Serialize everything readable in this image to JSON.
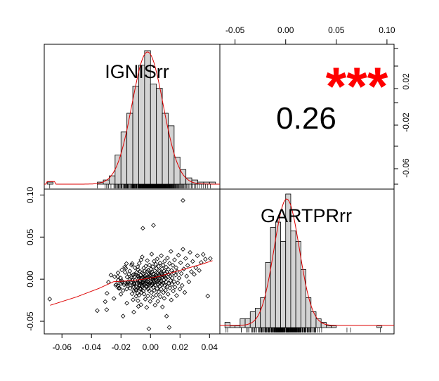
{
  "chart_data": {
    "type": "scatter",
    "variables": [
      "IGNISrr",
      "GARTPRrr"
    ],
    "correlation": {
      "value": "0.26",
      "significance": "***",
      "significance_color": "#ff0000"
    },
    "axes": {
      "x_var1": {
        "ticks": [
          -0.06,
          -0.04,
          -0.02,
          0.0,
          0.02,
          0.04
        ],
        "tick_labels": [
          "-0.06",
          "-0.04",
          "-0.02",
          "0.00",
          "0.02",
          "0.04"
        ],
        "range": [
          -0.072,
          0.047
        ]
      },
      "y_var2": {
        "ticks": [
          -0.05,
          0.0,
          0.05,
          0.1
        ],
        "tick_labels": [
          "-0.05",
          "0.00",
          "0.05",
          "0.10"
        ],
        "range": [
          -0.065,
          0.107
        ]
      },
      "x_var2": {
        "ticks": [
          -0.05,
          0.0,
          0.05,
          0.1
        ],
        "tick_labels": [
          "-0.05",
          "0.00",
          "0.05",
          "0.10"
        ],
        "range": [
          -0.065,
          0.107
        ]
      },
      "y_var1": {
        "ticks": [
          0.02,
          -0.02,
          -0.06
        ],
        "tick_labels": [
          "0.02",
          "-0.02",
          "-0.06"
        ]
      }
    },
    "histograms": {
      "IGNISrr": {
        "bins": [
          -0.07,
          -0.066,
          -0.036,
          -0.032,
          -0.028,
          -0.024,
          -0.02,
          -0.016,
          -0.012,
          -0.008,
          -0.004,
          0.0,
          0.004,
          0.008,
          0.012,
          0.016,
          0.02,
          0.024,
          0.028,
          0.032,
          0.036,
          0.04,
          0.044
        ],
        "counts": [
          1,
          0,
          1,
          2,
          4,
          14,
          25,
          34,
          47,
          57,
          64,
          48,
          46,
          34,
          28,
          13,
          7,
          3,
          2,
          1,
          1,
          1
        ],
        "max_count": 64
      },
      "GARTPRrr": {
        "bins": [
          -0.06,
          -0.055,
          -0.05,
          -0.045,
          -0.04,
          -0.035,
          -0.03,
          -0.025,
          -0.02,
          -0.015,
          -0.01,
          -0.005,
          0.0,
          0.005,
          0.01,
          0.015,
          0.02,
          0.025,
          0.03,
          0.035,
          0.04,
          0.045,
          0.05,
          0.09,
          0.095
        ],
        "counts": [
          3,
          1,
          1,
          5,
          5,
          9,
          11,
          17,
          37,
          57,
          60,
          49,
          76,
          55,
          49,
          33,
          17,
          9,
          5,
          3,
          1,
          1,
          0,
          1
        ],
        "max_count": 76
      }
    },
    "loess": [
      {
        "x": -0.068,
        "y": -0.031
      },
      {
        "x": -0.05,
        "y": -0.021
      },
      {
        "x": -0.035,
        "y": -0.011
      },
      {
        "x": -0.025,
        "y": -0.003
      },
      {
        "x": -0.015,
        "y": -0.002
      },
      {
        "x": -0.005,
        "y": 0.0
      },
      {
        "x": 0.005,
        "y": 0.003
      },
      {
        "x": 0.015,
        "y": 0.008
      },
      {
        "x": 0.025,
        "y": 0.013
      },
      {
        "x": 0.035,
        "y": 0.018
      },
      {
        "x": 0.042,
        "y": 0.022
      }
    ],
    "points": [
      {
        "x": -0.0683,
        "y": -0.0236
      },
      {
        "x": -0.0361,
        "y": -0.0373
      },
      {
        "x": -0.0307,
        "y": -0.0267
      },
      {
        "x": -0.0297,
        "y": -0.0363
      },
      {
        "x": -0.0295,
        "y": -0.0168
      },
      {
        "x": -0.0285,
        "y": -0.0035
      },
      {
        "x": -0.0268,
        "y": 0.0049
      },
      {
        "x": -0.0248,
        "y": -0.0229
      },
      {
        "x": -0.0243,
        "y": 0.0029
      },
      {
        "x": -0.0236,
        "y": -0.0071
      },
      {
        "x": -0.0231,
        "y": -0.0062
      },
      {
        "x": -0.0222,
        "y": 0.0031
      },
      {
        "x": -0.022,
        "y": 0.0075
      },
      {
        "x": -0.022,
        "y": -0.0078
      },
      {
        "x": -0.0219,
        "y": -0.0013
      },
      {
        "x": -0.0216,
        "y": -0.0107
      },
      {
        "x": -0.0209,
        "y": -0.0108
      },
      {
        "x": -0.0202,
        "y": 0.0014
      },
      {
        "x": -0.0201,
        "y": -0.0178
      },
      {
        "x": -0.02,
        "y": -0.0052
      },
      {
        "x": -0.0196,
        "y": -0.0016
      },
      {
        "x": -0.0195,
        "y": -0.0034
      },
      {
        "x": -0.0194,
        "y": 0.011
      },
      {
        "x": -0.0186,
        "y": -0.0135
      },
      {
        "x": -0.0186,
        "y": -0.0439
      },
      {
        "x": -0.0179,
        "y": -0.0067
      },
      {
        "x": -0.0175,
        "y": 0.0144
      },
      {
        "x": -0.0175,
        "y": -0.0047
      },
      {
        "x": -0.0172,
        "y": 0.0081
      },
      {
        "x": -0.0168,
        "y": 0.013
      },
      {
        "x": -0.0163,
        "y": 0.0185
      },
      {
        "x": -0.0161,
        "y": -0.0117
      },
      {
        "x": -0.016,
        "y": -0.0285
      },
      {
        "x": -0.0158,
        "y": 0.0025
      },
      {
        "x": -0.0155,
        "y": -0.0058
      },
      {
        "x": -0.0155,
        "y": -0.0036
      },
      {
        "x": -0.0155,
        "y": -0.004
      },
      {
        "x": -0.0155,
        "y": -0.0081
      },
      {
        "x": -0.0151,
        "y": -0.0037
      },
      {
        "x": -0.0146,
        "y": 0.006
      },
      {
        "x": -0.014,
        "y": 0.0096
      },
      {
        "x": -0.0138,
        "y": 0.0004
      },
      {
        "x": -0.0138,
        "y": -0.0108
      },
      {
        "x": -0.013,
        "y": 0.0018
      },
      {
        "x": -0.0129,
        "y": -0.0042
      },
      {
        "x": -0.0128,
        "y": 0.0167
      },
      {
        "x": -0.0125,
        "y": -0.0173
      },
      {
        "x": -0.0124,
        "y": 0.0185
      },
      {
        "x": -0.0123,
        "y": -0.001
      },
      {
        "x": -0.0122,
        "y": -0.0065
      },
      {
        "x": -0.012,
        "y": 0.0047
      },
      {
        "x": -0.0118,
        "y": -0.0244
      },
      {
        "x": -0.0116,
        "y": -0.0089
      },
      {
        "x": -0.0114,
        "y": 0.0055
      },
      {
        "x": -0.0113,
        "y": -0.0391
      },
      {
        "x": -0.0113,
        "y": -0.0136
      },
      {
        "x": -0.0112,
        "y": -0.0051
      },
      {
        "x": -0.011,
        "y": -0.0059
      },
      {
        "x": -0.0109,
        "y": 0.0029
      },
      {
        "x": -0.0106,
        "y": 0.0136
      },
      {
        "x": -0.0104,
        "y": -0.0012
      },
      {
        "x": -0.01,
        "y": -0.0127
      },
      {
        "x": -0.0099,
        "y": 0.0055
      },
      {
        "x": -0.0097,
        "y": -0.0202
      },
      {
        "x": -0.0097,
        "y": -0.0134
      },
      {
        "x": -0.0095,
        "y": 0.008
      },
      {
        "x": -0.0095,
        "y": -0.0092
      },
      {
        "x": -0.0093,
        "y": -0.005
      },
      {
        "x": -0.0087,
        "y": -0.0166
      },
      {
        "x": -0.0087,
        "y": 0.0146
      },
      {
        "x": -0.0086,
        "y": 0.0036
      },
      {
        "x": -0.0085,
        "y": -0.0256
      },
      {
        "x": -0.0084,
        "y": -0.0102
      },
      {
        "x": -0.0084,
        "y": 0.0112
      },
      {
        "x": -0.0082,
        "y": -0.0323
      },
      {
        "x": -0.0081,
        "y": 0.0033
      },
      {
        "x": -0.008,
        "y": -0.0044
      },
      {
        "x": -0.0079,
        "y": 0.0015
      },
      {
        "x": -0.0078,
        "y": -0.0191
      },
      {
        "x": -0.0076,
        "y": 0.0188
      },
      {
        "x": -0.0075,
        "y": -0.0024
      },
      {
        "x": -0.0073,
        "y": -0.0069
      },
      {
        "x": -0.0072,
        "y": 0.0094
      },
      {
        "x": -0.0071,
        "y": -0.0109
      },
      {
        "x": -0.007,
        "y": -0.0023
      },
      {
        "x": -0.0069,
        "y": -0.0118
      },
      {
        "x": -0.0067,
        "y": 0.0048
      },
      {
        "x": -0.0065,
        "y": -0.0051
      },
      {
        "x": -0.0064,
        "y": 0.0229
      },
      {
        "x": -0.0064,
        "y": -0.0303
      },
      {
        "x": -0.0063,
        "y": 0.0009
      },
      {
        "x": -0.0061,
        "y": -0.0157
      },
      {
        "x": -0.0059,
        "y": -0.0072
      },
      {
        "x": -0.0057,
        "y": 0.0076
      },
      {
        "x": -0.0056,
        "y": 0.0264
      },
      {
        "x": -0.0055,
        "y": 0.0013
      },
      {
        "x": -0.0055,
        "y": -0.0087
      },
      {
        "x": -0.0053,
        "y": -0.0043
      },
      {
        "x": -0.0052,
        "y": 0.0025
      },
      {
        "x": -0.0052,
        "y": 0.0605
      },
      {
        "x": -0.0051,
        "y": -0.0036
      },
      {
        "x": -0.0049,
        "y": 0.0067
      },
      {
        "x": -0.0049,
        "y": -0.0142
      },
      {
        "x": -0.0047,
        "y": -0.0064
      },
      {
        "x": -0.0046,
        "y": 0.0132
      },
      {
        "x": -0.0044,
        "y": -0.0025
      },
      {
        "x": -0.0044,
        "y": -0.0176
      },
      {
        "x": -0.0042,
        "y": -0.0005
      },
      {
        "x": -0.004,
        "y": 0.0097
      },
      {
        "x": -0.0039,
        "y": -0.011
      },
      {
        "x": -0.0037,
        "y": 0.0036
      },
      {
        "x": -0.0036,
        "y": -0.0052
      },
      {
        "x": -0.0035,
        "y": -0.0238
      },
      {
        "x": -0.0034,
        "y": 0.0007
      },
      {
        "x": -0.0032,
        "y": 0.0155
      },
      {
        "x": -0.0031,
        "y": -0.0027
      },
      {
        "x": -0.003,
        "y": -0.0084
      },
      {
        "x": -0.0029,
        "y": 0.005
      },
      {
        "x": -0.0027,
        "y": -0.0096
      },
      {
        "x": -0.0026,
        "y": -0.0336
      },
      {
        "x": -0.0024,
        "y": 0.0019
      },
      {
        "x": -0.0023,
        "y": -0.0055
      },
      {
        "x": -0.0022,
        "y": 0.0221
      },
      {
        "x": -0.0021,
        "y": 0.009
      },
      {
        "x": -0.0019,
        "y": -0.0031
      },
      {
        "x": -0.0018,
        "y": -0.0199
      },
      {
        "x": -0.0017,
        "y": -0.0029
      },
      {
        "x": -0.0015,
        "y": 0.0107
      },
      {
        "x": -0.0015,
        "y": -0.0116
      },
      {
        "x": -0.0013,
        "y": 0.0029
      },
      {
        "x": -0.0012,
        "y": -0.0065
      },
      {
        "x": -0.0011,
        "y": -0.0589
      },
      {
        "x": -0.001,
        "y": 0.0064
      },
      {
        "x": -0.0009,
        "y": 0.0022
      },
      {
        "x": -0.0008,
        "y": -0.0139
      },
      {
        "x": -0.0007,
        "y": 0.0168
      },
      {
        "x": -0.0005,
        "y": -0.0046
      },
      {
        "x": -0.0004,
        "y": 0.0044
      },
      {
        "x": -0.0002,
        "y": -0.0264
      },
      {
        "x": -0.0001,
        "y": 0.001
      },
      {
        "x": 0.0,
        "y": -0.0075
      },
      {
        "x": 0.0002,
        "y": 0.012
      },
      {
        "x": 0.0003,
        "y": -0.0028
      },
      {
        "x": 0.0004,
        "y": 0.0071
      },
      {
        "x": 0.0006,
        "y": -0.0161
      },
      {
        "x": 0.0007,
        "y": 0.0003
      },
      {
        "x": 0.0008,
        "y": 0.0298
      },
      {
        "x": 0.001,
        "y": -0.0073
      },
      {
        "x": 0.0011,
        "y": 0.0085
      },
      {
        "x": 0.0012,
        "y": -0.0049
      },
      {
        "x": 0.0014,
        "y": 0.0027
      },
      {
        "x": 0.0015,
        "y": -0.0216
      },
      {
        "x": 0.0016,
        "y": 0.0148
      },
      {
        "x": 0.0018,
        "y": 0.0005
      },
      {
        "x": 0.0019,
        "y": -0.0098
      },
      {
        "x": 0.0021,
        "y": 0.0061
      },
      {
        "x": 0.0022,
        "y": -0.0024
      },
      {
        "x": 0.0024,
        "y": 0.0212
      },
      {
        "x": 0.0025,
        "y": -0.0133
      },
      {
        "x": 0.0026,
        "y": 0.0033
      },
      {
        "x": 0.0028,
        "y": -0.0042
      },
      {
        "x": 0.0029,
        "y": 0.0101
      },
      {
        "x": 0.0031,
        "y": -0.0309
      },
      {
        "x": 0.0032,
        "y": 0.0016
      },
      {
        "x": 0.0033,
        "y": -0.0069
      },
      {
        "x": 0.0035,
        "y": 0.0178
      },
      {
        "x": 0.0036,
        "y": -0.0013
      },
      {
        "x": 0.0038,
        "y": 0.0052
      },
      {
        "x": 0.0039,
        "y": -0.0189
      },
      {
        "x": 0.004,
        "y": 0.0127
      },
      {
        "x": 0.0042,
        "y": -0.0036
      },
      {
        "x": 0.0043,
        "y": 0.0034
      },
      {
        "x": 0.0045,
        "y": -0.0112
      },
      {
        "x": 0.0046,
        "y": 0.0241
      },
      {
        "x": 0.0048,
        "y": -0.0025
      },
      {
        "x": 0.0049,
        "y": 0.0069
      },
      {
        "x": 0.005,
        "y": -0.0263
      },
      {
        "x": 0.0052,
        "y": 0.0017
      },
      {
        "x": 0.0053,
        "y": -0.0062
      },
      {
        "x": 0.0055,
        "y": 0.0152
      },
      {
        "x": 0.0056,
        "y": -0.0151
      },
      {
        "x": 0.0058,
        "y": 0.005
      },
      {
        "x": 0.0059,
        "y": -0.0041
      },
      {
        "x": 0.006,
        "y": 0.0095
      },
      {
        "x": 0.0062,
        "y": -0.0085
      },
      {
        "x": 0.0063,
        "y": 0.0011
      },
      {
        "x": 0.0065,
        "y": 0.0192
      },
      {
        "x": 0.0066,
        "y": -0.0207
      },
      {
        "x": 0.0067,
        "y": 0.0037
      },
      {
        "x": 0.0069,
        "y": -0.0019
      },
      {
        "x": 0.007,
        "y": 0.0078
      },
      {
        "x": 0.0072,
        "y": -0.0118
      },
      {
        "x": 0.0073,
        "y": 0.0279
      },
      {
        "x": 0.0075,
        "y": -0.0028
      },
      {
        "x": 0.0076,
        "y": 0.0059
      },
      {
        "x": 0.0078,
        "y": -0.0066
      },
      {
        "x": 0.0079,
        "y": 0.0124
      },
      {
        "x": 0.0081,
        "y": -0.033
      },
      {
        "x": 0.0082,
        "y": 0.0022
      },
      {
        "x": 0.0084,
        "y": -0.0046
      },
      {
        "x": 0.0085,
        "y": 0.0166
      },
      {
        "x": 0.0087,
        "y": -0.0158
      },
      {
        "x": 0.0088,
        "y": 0.0045
      },
      {
        "x": 0.009,
        "y": -0.0009
      },
      {
        "x": 0.0092,
        "y": 0.0098
      },
      {
        "x": 0.0093,
        "y": -0.0227
      },
      {
        "x": 0.0095,
        "y": 0.0028
      },
      {
        "x": 0.0096,
        "y": 0.0214
      },
      {
        "x": 0.0098,
        "y": -0.0077
      },
      {
        "x": 0.01,
        "y": 0.007
      },
      {
        "x": 0.0102,
        "y": -0.0131
      },
      {
        "x": 0.0104,
        "y": 0.0013
      },
      {
        "x": 0.0106,
        "y": 0.0143
      },
      {
        "x": 0.0107,
        "y": -0.0034
      },
      {
        "x": 0.0109,
        "y": -0.0439
      },
      {
        "x": 0.0111,
        "y": 0.0086
      },
      {
        "x": 0.0113,
        "y": -0.0088
      },
      {
        "x": 0.0115,
        "y": 0.0252
      },
      {
        "x": 0.0117,
        "y": 0.0024
      },
      {
        "x": 0.0119,
        "y": -0.0178
      },
      {
        "x": 0.0121,
        "y": 0.0116
      },
      {
        "x": 0.0123,
        "y": -0.0048
      },
      {
        "x": 0.0125,
        "y": 0.0057
      },
      {
        "x": 0.0127,
        "y": -0.0573
      },
      {
        "x": 0.0129,
        "y": 0.0187
      },
      {
        "x": 0.0131,
        "y": -0.0104
      },
      {
        "x": 0.0134,
        "y": 0.004
      },
      {
        "x": 0.0136,
        "y": -0.0016
      },
      {
        "x": 0.0138,
        "y": 0.033
      },
      {
        "x": 0.0141,
        "y": -0.0247
      },
      {
        "x": 0.0143,
        "y": 0.0105
      },
      {
        "x": 0.0146,
        "y": -0.0062
      },
      {
        "x": 0.0148,
        "y": 0.0015
      },
      {
        "x": 0.0151,
        "y": 0.0165
      },
      {
        "x": 0.0154,
        "y": -0.0141
      },
      {
        "x": 0.0157,
        "y": 0.0072
      },
      {
        "x": 0.016,
        "y": -0.0029
      },
      {
        "x": 0.0163,
        "y": 0.0229
      },
      {
        "x": 0.0166,
        "y": -0.0094
      },
      {
        "x": 0.017,
        "y": 0.0049
      },
      {
        "x": 0.0173,
        "y": 0.0137
      },
      {
        "x": 0.0177,
        "y": -0.0195
      },
      {
        "x": 0.0181,
        "y": 0.0091
      },
      {
        "x": 0.0185,
        "y": -0.0044
      },
      {
        "x": 0.019,
        "y": 0.0285
      },
      {
        "x": 0.0194,
        "y": 0.0013
      },
      {
        "x": 0.0199,
        "y": -0.0118
      },
      {
        "x": 0.0204,
        "y": 0.0195
      },
      {
        "x": 0.0209,
        "y": 0.0067
      },
      {
        "x": 0.0214,
        "y": -0.0075
      },
      {
        "x": 0.022,
        "y": 0.0355
      },
      {
        "x": 0.0226,
        "y": 0.0121
      },
      {
        "x": 0.0232,
        "y": -0.0157
      },
      {
        "x": 0.0238,
        "y": 0.0247
      },
      {
        "x": 0.0245,
        "y": 0.0036
      },
      {
        "x": 0.0252,
        "y": 0.0164
      },
      {
        "x": 0.026,
        "y": -0.0031
      },
      {
        "x": 0.0268,
        "y": 0.0318
      },
      {
        "x": 0.0277,
        "y": 0.0089
      },
      {
        "x": 0.0286,
        "y": 0.0211
      },
      {
        "x": 0.0296,
        "y": 0.0058
      },
      {
        "x": 0.0307,
        "y": 0.0136
      },
      {
        "x": 0.0318,
        "y": 0.0279
      },
      {
        "x": 0.033,
        "y": 0.0103
      },
      {
        "x": 0.0343,
        "y": 0.0199
      },
      {
        "x": 0.0357,
        "y": 0.0294
      },
      {
        "x": 0.0372,
        "y": 0.0237
      },
      {
        "x": 0.0388,
        "y": -0.02
      },
      {
        "x": 0.0405,
        "y": 0.0245
      },
      {
        "x": 0.002,
        "y": 0.064
      },
      {
        "x": 0.022,
        "y": 0.0935
      }
    ]
  }
}
